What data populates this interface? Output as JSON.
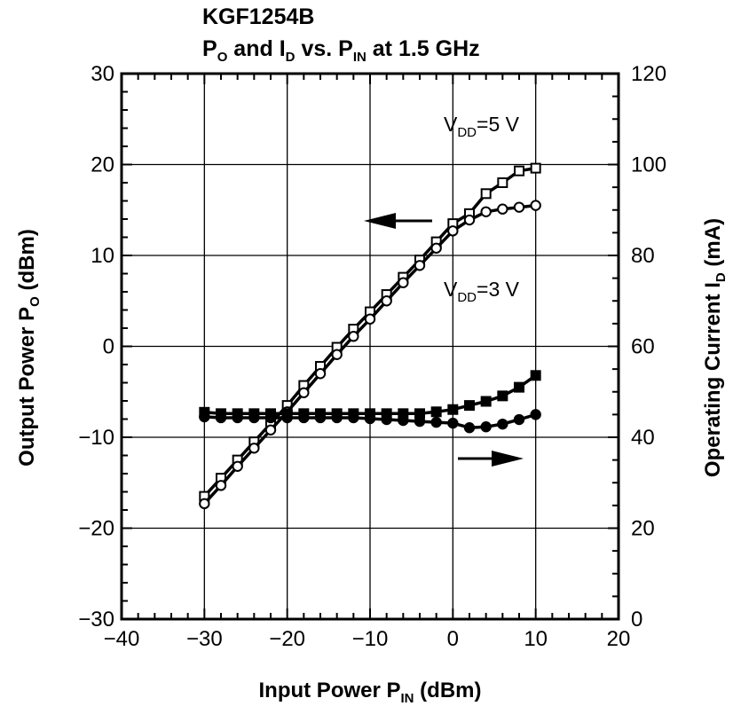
{
  "chart_data": {
    "type": "line",
    "title_line1": "KGF1254B",
    "title_line2": {
      "p": "P",
      "p_sub": "O",
      "and_i": " and I",
      "i_sub": "D",
      "vs_p": " vs. P",
      "pin_sub": "IN",
      "rest": " at 1.5 GHz"
    },
    "xlabel": {
      "main": "Input Power  P",
      "sub": "IN",
      "tail": "  (dBm)"
    },
    "ylabel_left": {
      "main": "Output Power  P",
      "sub": "O",
      "tail": "  (dBm)"
    },
    "ylabel_right": {
      "main": "Operating Current  I",
      "sub": "D",
      "tail": "  (mA)"
    },
    "xlim": [
      -40,
      20
    ],
    "ylim_left": [
      -30,
      30
    ],
    "ylim_right": [
      0,
      120
    ],
    "x_ticks": [
      -40,
      -30,
      -20,
      -10,
      0,
      10,
      20
    ],
    "x_tick_labels": [
      "−40",
      "−30",
      "−20",
      "−10",
      "0",
      "10",
      "20"
    ],
    "y_left_ticks": [
      -30,
      -20,
      -10,
      0,
      10,
      20,
      30
    ],
    "y_left_tick_labels": [
      "−30",
      "−20",
      "−10",
      "0",
      "10",
      "20",
      "30"
    ],
    "y_right_ticks": [
      0,
      20,
      40,
      60,
      80,
      100,
      120
    ],
    "y_right_tick_labels": [
      "0",
      "20",
      "40",
      "60",
      "80",
      "100",
      "120"
    ],
    "grid": true,
    "annotations": {
      "vdd5": {
        "v": "V",
        "sub": "DD",
        "rest": "=5 V"
      },
      "vdd3": {
        "v": "V",
        "sub": "DD",
        "rest": "=3 V"
      }
    },
    "series": [
      {
        "axis": "left",
        "marker": "open-square",
        "x": [
          -30,
          -28,
          -26,
          -24,
          -22,
          -20,
          -18,
          -16,
          -14,
          -12,
          -10,
          -8,
          -6,
          -4,
          -2,
          0,
          2,
          4,
          6,
          8,
          10
        ],
        "y": [
          -16.5,
          -14.5,
          -12.5,
          -10.5,
          -8.5,
          -6.5,
          -4.3,
          -2.2,
          -0.1,
          1.9,
          3.8,
          5.7,
          7.6,
          9.5,
          11.5,
          13.5,
          14.6,
          16.8,
          18.0,
          19.3,
          19.6
        ]
      },
      {
        "axis": "left",
        "marker": "open-circle",
        "x": [
          -30,
          -28,
          -26,
          -24,
          -22,
          -20,
          -18,
          -16,
          -14,
          -12,
          -10,
          -8,
          -6,
          -4,
          -2,
          0,
          2,
          4,
          6,
          8,
          10
        ],
        "y": [
          -17.3,
          -15.3,
          -13.2,
          -11.2,
          -9.2,
          -7.2,
          -5.1,
          -3.0,
          -0.9,
          1.1,
          3.0,
          5.0,
          7.0,
          8.9,
          10.8,
          12.7,
          13.9,
          14.8,
          15.1,
          15.3,
          15.5
        ]
      },
      {
        "axis": "right",
        "marker": "filled-square",
        "x": [
          -30,
          -28,
          -26,
          -24,
          -22,
          -20,
          -18,
          -16,
          -14,
          -12,
          -10,
          -8,
          -6,
          -4,
          -2,
          0,
          2,
          4,
          6,
          8,
          10
        ],
        "y": [
          45.5,
          45.2,
          45.2,
          45.2,
          45.2,
          45.2,
          45.2,
          45.2,
          45.2,
          45.2,
          45.2,
          45.2,
          45.2,
          45.2,
          45.6,
          46.1,
          47.0,
          47.9,
          49.1,
          51.0,
          53.6
        ]
      },
      {
        "axis": "right",
        "marker": "filled-circle",
        "x": [
          -30,
          -28,
          -26,
          -24,
          -22,
          -20,
          -18,
          -16,
          -14,
          -12,
          -10,
          -8,
          -6,
          -4,
          -2,
          0,
          2,
          4,
          6,
          8,
          10
        ],
        "y": [
          44.5,
          44.3,
          44.3,
          44.3,
          44.3,
          44.3,
          44.3,
          44.3,
          44.3,
          44.3,
          44.1,
          43.9,
          43.7,
          43.5,
          43.3,
          43.1,
          42.1,
          42.3,
          42.9,
          43.9,
          45.0
        ]
      }
    ]
  }
}
